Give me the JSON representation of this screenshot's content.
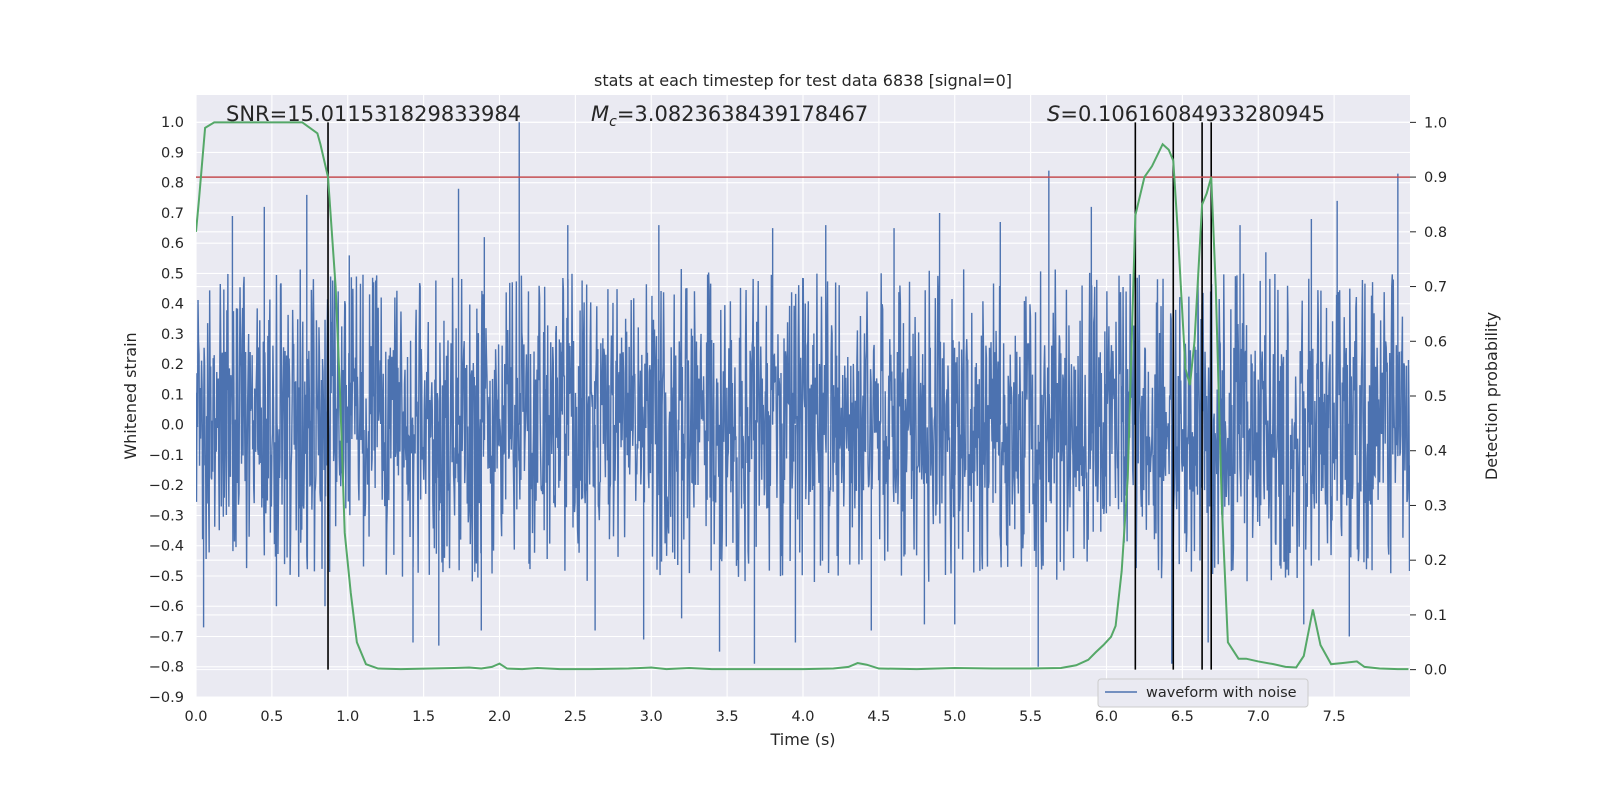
{
  "chart_data": {
    "type": "line",
    "title": "stats at each timestep for test data 6838 [signal=0]",
    "xlabel": "Time (s)",
    "ylabel_left": "Whitened strain",
    "ylabel_right": "Detection probability",
    "xlim": [
      0.0,
      8.0
    ],
    "ylim_left": [
      -0.9,
      1.09
    ],
    "ylim_right": [
      -0.05,
      1.05
    ],
    "x_ticks": [
      "0.0",
      "0.5",
      "1.0",
      "1.5",
      "2.0",
      "2.5",
      "3.0",
      "3.5",
      "4.0",
      "4.5",
      "5.0",
      "5.5",
      "6.0",
      "6.5",
      "7.0",
      "7.5"
    ],
    "y_ticks_left": [
      "-0.9",
      "-0.8",
      "-0.7",
      "-0.6",
      "-0.5",
      "-0.4",
      "-0.3",
      "-0.2",
      "-0.1",
      "0.0",
      "0.1",
      "0.2",
      "0.3",
      "0.4",
      "0.5",
      "0.6",
      "0.7",
      "0.8",
      "0.9",
      "1.0"
    ],
    "y_ticks_right": [
      "0.0",
      "0.1",
      "0.2",
      "0.3",
      "0.4",
      "0.5",
      "0.6",
      "0.7",
      "0.8",
      "0.9",
      "1.0"
    ],
    "grid": true,
    "legend": {
      "placement": "lower-right",
      "entries": [
        "waveform with noise"
      ]
    },
    "annotations": {
      "snr": "SNR=15.011531829833984",
      "mc_symbol": "M",
      "mc_sub": "c",
      "mc_value": "=3.0823638439178467",
      "s_symbol": "S",
      "s_value": "=0.1061608493328​0945"
    },
    "threshold": 0.9,
    "vertical_lines_x": [
      0.87,
      6.19,
      6.44,
      6.63,
      6.69
    ],
    "waveform": {
      "name": "waveform with noise",
      "amplitude_typical": 0.28,
      "duration": 8.0,
      "spikes": [
        [
          0.05,
          -0.67
        ],
        [
          0.24,
          0.69
        ],
        [
          0.45,
          0.72
        ],
        [
          0.53,
          -0.6
        ],
        [
          0.73,
          0.76
        ],
        [
          0.85,
          -0.6
        ],
        [
          1.01,
          0.56
        ],
        [
          1.43,
          -0.72
        ],
        [
          1.6,
          -0.73
        ],
        [
          1.73,
          0.78
        ],
        [
          1.88,
          -0.68
        ],
        [
          1.9,
          0.62
        ],
        [
          2.13,
          1.0
        ],
        [
          2.45,
          0.66
        ],
        [
          2.63,
          -0.68
        ],
        [
          2.95,
          -0.71
        ],
        [
          3.05,
          0.66
        ],
        [
          3.2,
          -0.64
        ],
        [
          3.45,
          -0.75
        ],
        [
          3.68,
          -0.79
        ],
        [
          3.8,
          0.65
        ],
        [
          3.95,
          -0.72
        ],
        [
          4.15,
          0.66
        ],
        [
          4.45,
          -0.68
        ],
        [
          4.6,
          0.65
        ],
        [
          4.8,
          -0.66
        ],
        [
          4.9,
          0.7
        ],
        [
          5.0,
          -0.66
        ],
        [
          5.3,
          0.67
        ],
        [
          5.55,
          -0.8
        ],
        [
          5.62,
          0.84
        ],
        [
          5.9,
          0.72
        ],
        [
          6.43,
          -0.79
        ],
        [
          6.67,
          -0.72
        ],
        [
          6.88,
          0.66
        ],
        [
          7.05,
          0.57
        ],
        [
          7.3,
          -0.66
        ],
        [
          7.35,
          0.68
        ],
        [
          7.52,
          0.74
        ],
        [
          7.6,
          -0.7
        ],
        [
          7.92,
          0.83
        ]
      ]
    },
    "detection_probability": {
      "x": [
        0.0,
        0.02,
        0.06,
        0.12,
        0.2,
        0.3,
        0.4,
        0.5,
        0.6,
        0.65,
        0.7,
        0.75,
        0.8,
        0.82,
        0.87,
        0.92,
        0.95,
        0.98,
        1.02,
        1.06,
        1.12,
        1.2,
        1.35,
        1.55,
        1.7,
        1.8,
        1.88,
        1.95,
        2.0,
        2.05,
        2.15,
        2.25,
        2.4,
        2.6,
        2.85,
        3.0,
        3.1,
        3.25,
        3.4,
        3.6,
        3.8,
        4.0,
        4.2,
        4.3,
        4.36,
        4.42,
        4.5,
        4.75,
        5.0,
        5.25,
        5.5,
        5.7,
        5.8,
        5.88,
        5.93,
        5.98,
        6.03,
        6.06,
        6.1,
        6.14,
        6.19,
        6.25,
        6.3,
        6.37,
        6.41,
        6.44,
        6.47,
        6.5,
        6.52,
        6.55,
        6.58,
        6.61,
        6.63,
        6.66,
        6.69,
        6.72,
        6.76,
        6.8,
        6.87,
        6.92,
        7.0,
        7.1,
        7.18,
        7.25,
        7.3,
        7.36,
        7.41,
        7.48,
        7.55,
        7.65,
        7.7,
        7.8,
        7.92,
        7.99
      ],
      "y": [
        0.8,
        0.86,
        0.99,
        1.0,
        1.0,
        1.0,
        1.0,
        1.0,
        1.0,
        1.0,
        1.0,
        0.99,
        0.98,
        0.96,
        0.9,
        0.7,
        0.5,
        0.25,
        0.14,
        0.05,
        0.01,
        0.002,
        0.001,
        0.002,
        0.003,
        0.004,
        0.002,
        0.005,
        0.011,
        0.002,
        0.001,
        0.003,
        0.001,
        0.001,
        0.002,
        0.004,
        0.001,
        0.003,
        0.001,
        0.001,
        0.001,
        0.001,
        0.002,
        0.005,
        0.012,
        0.009,
        0.002,
        0.001,
        0.003,
        0.002,
        0.002,
        0.003,
        0.008,
        0.018,
        0.032,
        0.045,
        0.06,
        0.08,
        0.18,
        0.35,
        0.83,
        0.9,
        0.92,
        0.96,
        0.95,
        0.93,
        0.8,
        0.65,
        0.55,
        0.52,
        0.6,
        0.75,
        0.85,
        0.87,
        0.9,
        0.7,
        0.3,
        0.05,
        0.02,
        0.02,
        0.015,
        0.01,
        0.005,
        0.004,
        0.025,
        0.11,
        0.045,
        0.01,
        0.012,
        0.015,
        0.005,
        0.002,
        0.001,
        0.001
      ]
    },
    "colors": {
      "waveform": "#4c72b0",
      "probability": "#55a868",
      "threshold": "#c44e52",
      "vertical": "#000000",
      "background": "#eaeaf2",
      "grid": "#ffffff"
    }
  }
}
